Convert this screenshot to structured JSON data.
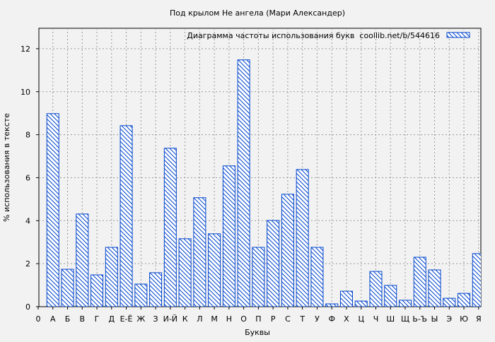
{
  "chart_data": {
    "type": "bar",
    "title": "Под крылом Не ангела (Мари Александер)",
    "xlabel": "Буквы",
    "ylabel": "% использования в тексте",
    "legend": {
      "label": "Диаграмма частоты использования букв  coollib.net/b/544616",
      "placement": "top-right"
    },
    "x_origin_label": "0",
    "categories": [
      "А",
      "Б",
      "В",
      "Г",
      "Д",
      "Е-Ё",
      "Ж",
      "З",
      "И-Й",
      "К",
      "Л",
      "М",
      "Н",
      "О",
      "П",
      "Р",
      "С",
      "Т",
      "У",
      "Ф",
      "Х",
      "Ц",
      "Ч",
      "Ш",
      "Щ",
      "Ь-Ъ",
      "Ы",
      "Э",
      "Ю",
      "Я"
    ],
    "values": [
      8.98,
      1.74,
      4.31,
      1.48,
      2.76,
      8.42,
      1.05,
      1.58,
      7.37,
      3.16,
      5.07,
      3.39,
      6.55,
      11.48,
      2.76,
      4.01,
      5.23,
      6.38,
      2.76,
      0.13,
      0.72,
      0.26,
      1.64,
      0.99,
      0.3,
      2.3,
      1.71,
      0.39,
      0.62,
      2.47
    ],
    "yticks": [
      0,
      2,
      4,
      6,
      8,
      10,
      12
    ],
    "ylim": [
      0,
      12.95
    ],
    "grid": true,
    "colors": {
      "bar_stroke": "#0044cc",
      "hatch": "#0044cc",
      "bar_fill": "#ffffff",
      "background": "#f2f2f2"
    }
  }
}
